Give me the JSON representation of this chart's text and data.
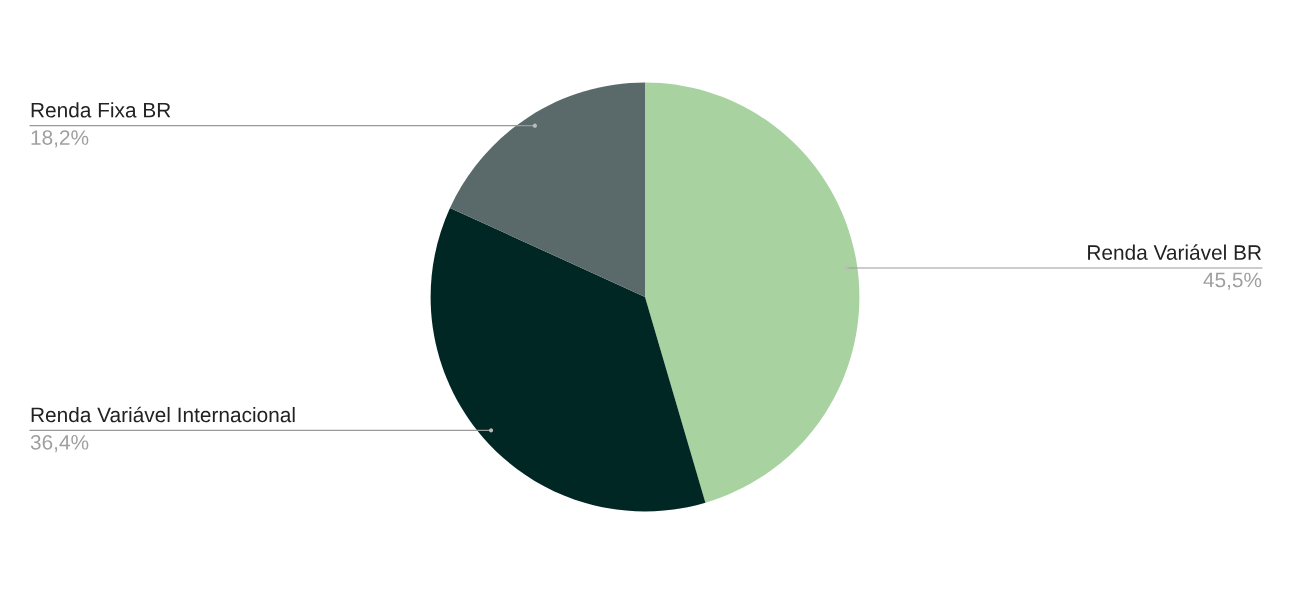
{
  "chart_data": {
    "type": "pie",
    "categories": [
      "Renda Variável BR",
      "Renda Variável Internacional",
      "Renda Fixa BR"
    ],
    "values": [
      45.5,
      36.4,
      18.2
    ],
    "colors": [
      "#a8d29f",
      "#002724",
      "#5a6a6b"
    ],
    "value_labels": [
      "45,5%",
      "36,4%",
      "18,2%"
    ],
    "legend": false
  }
}
